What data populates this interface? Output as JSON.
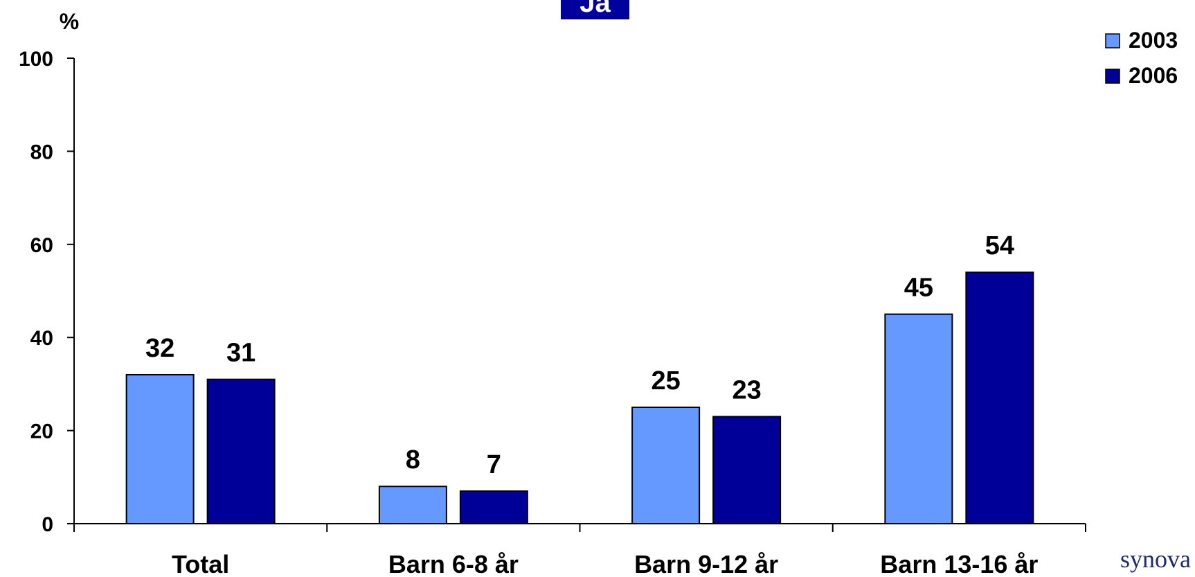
{
  "chart_data": {
    "type": "bar",
    "ylabel": "%",
    "ylim": [
      0,
      100
    ],
    "yticks": [
      0,
      20,
      40,
      60,
      80,
      100
    ],
    "categories": [
      "Total",
      "Barn 6-8 år",
      "Barn 9-12 år",
      "Barn 13-16 år"
    ],
    "series": [
      {
        "name": "2003",
        "color": "#6699ff",
        "values": [
          32,
          8,
          25,
          45
        ]
      },
      {
        "name": "2006",
        "color": "#000099",
        "values": [
          31,
          7,
          23,
          54
        ]
      }
    ],
    "data_labels": true,
    "grid": false,
    "legend_position": "top-right"
  },
  "header_badge": {
    "text": "Ja"
  },
  "logo": {
    "text": "synova"
  }
}
